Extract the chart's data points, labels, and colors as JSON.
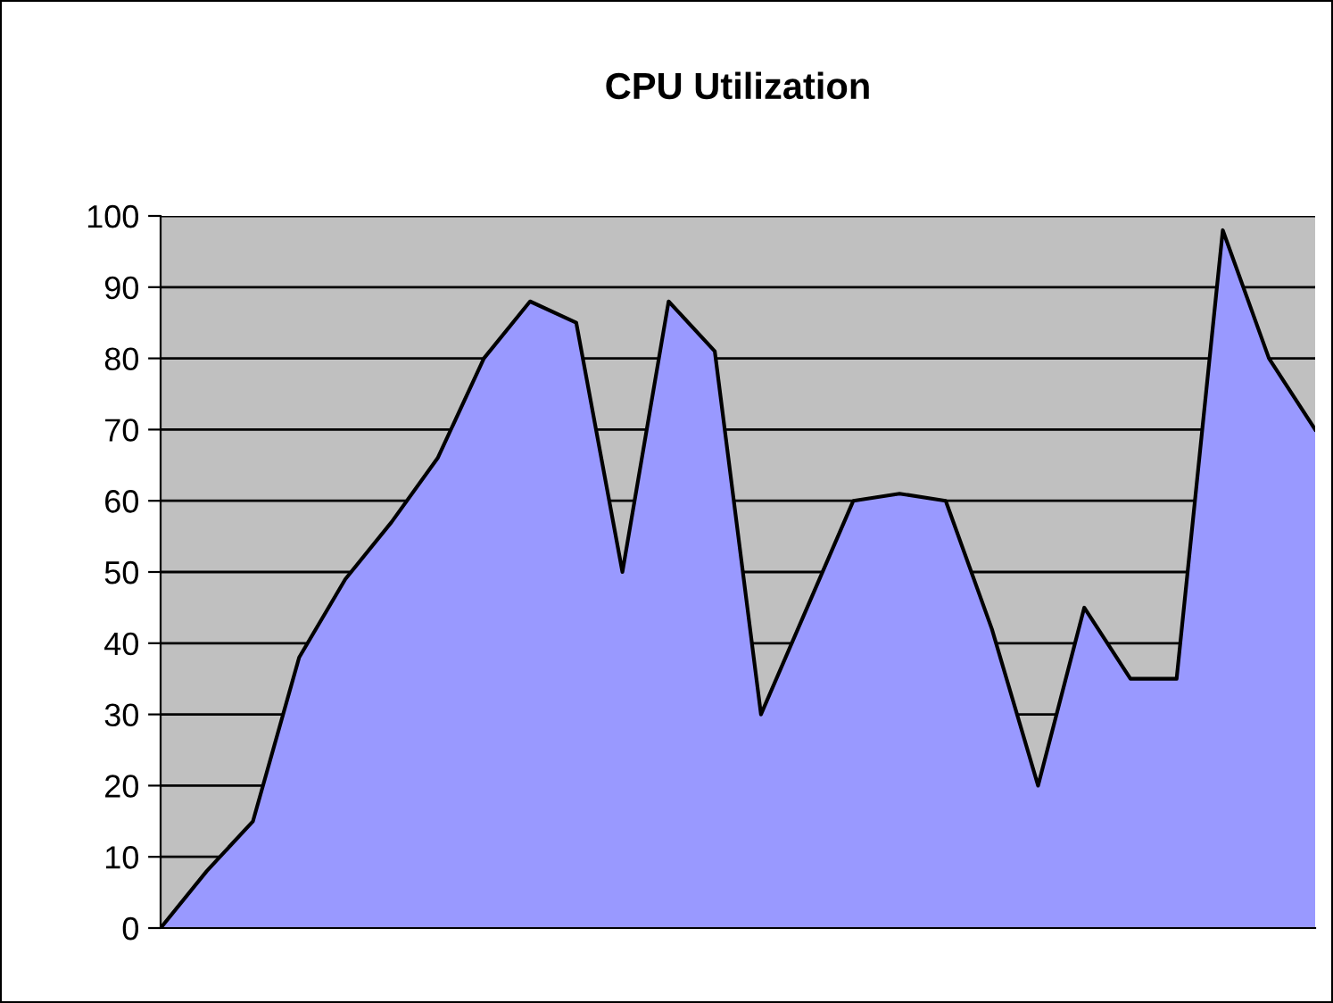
{
  "chart_data": {
    "type": "area",
    "title": "CPU Utilization",
    "categories": [
      null,
      null,
      null,
      null,
      null,
      null,
      null,
      null,
      null,
      null,
      null,
      null,
      null,
      null,
      null,
      null,
      null,
      null,
      null,
      null,
      null,
      null,
      null,
      null,
      null,
      null
    ],
    "series": [
      {
        "color": "#9999ff",
        "values": [
          0,
          8,
          15,
          38,
          49,
          57,
          66,
          80,
          88,
          85,
          50,
          88,
          81,
          30,
          45,
          60,
          61,
          60,
          42,
          20,
          45,
          35,
          35,
          98,
          80,
          70
        ]
      }
    ],
    "ylim": [
      0,
      100
    ],
    "yticks": [
      0,
      10,
      20,
      30,
      40,
      50,
      60,
      70,
      80,
      90,
      100
    ],
    "grid": "y",
    "legend": false,
    "tick_labels": "y"
  }
}
